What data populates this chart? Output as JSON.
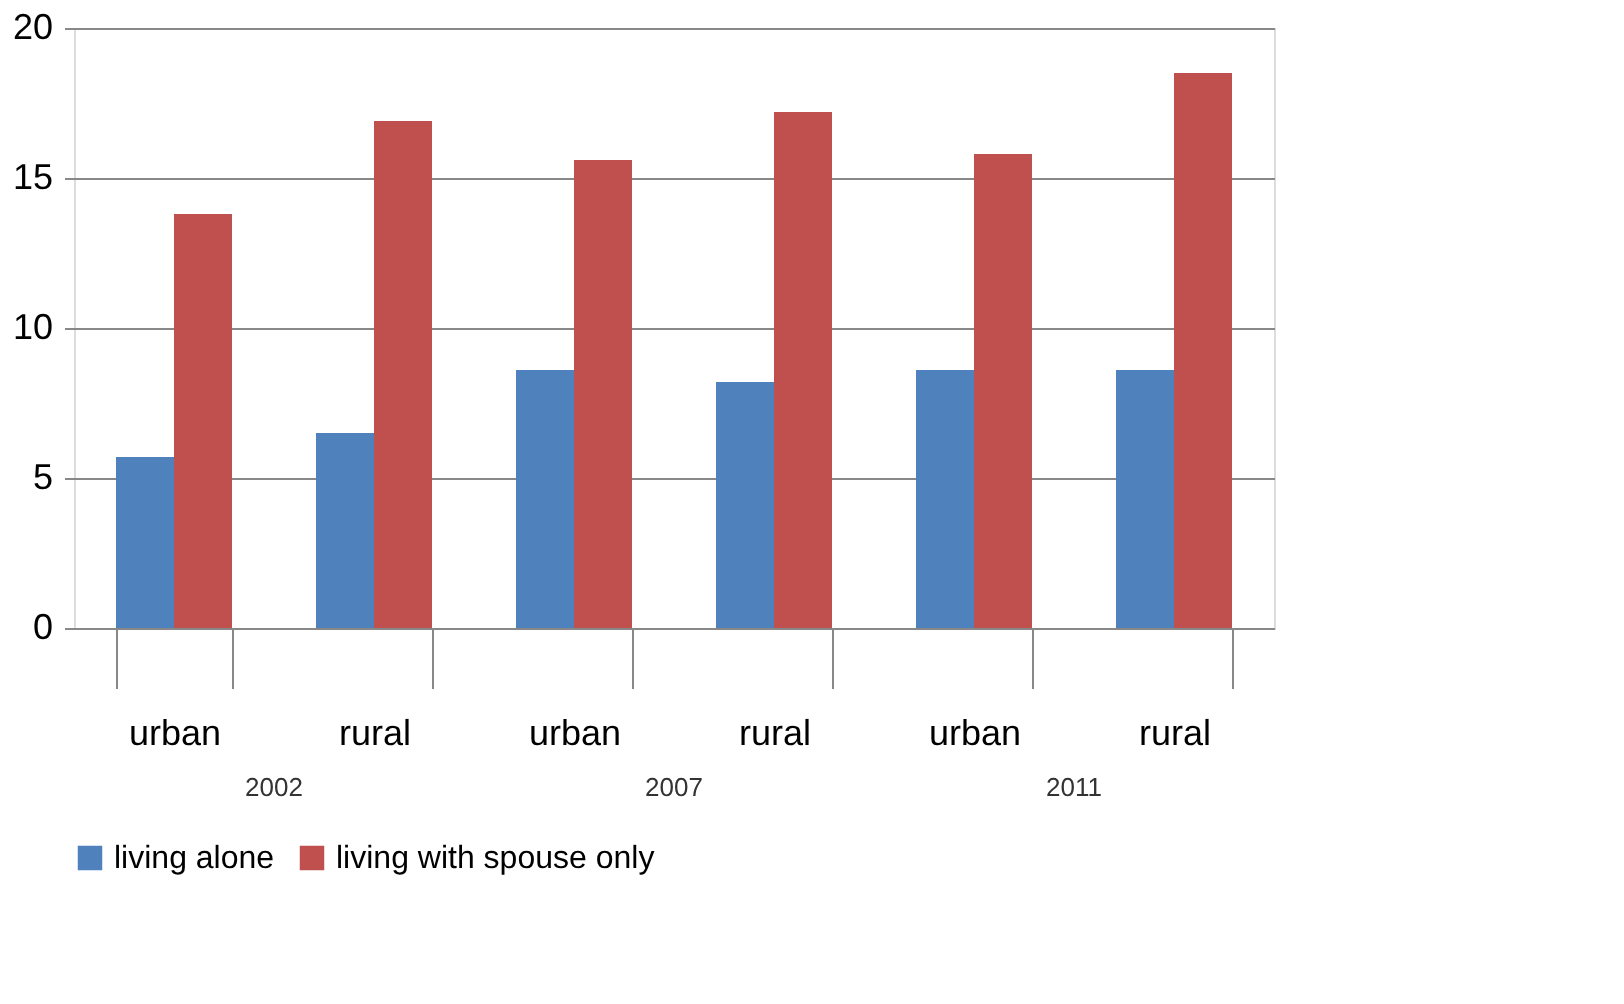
{
  "chart_data": {
    "type": "bar",
    "categories": [
      "urban",
      "rural",
      "urban",
      "rural",
      "urban",
      "rural"
    ],
    "series": [
      {
        "name": "living alone",
        "color": "#4f81bd",
        "values": [
          5.7,
          6.5,
          8.6,
          8.2,
          8.6,
          8.6
        ]
      },
      {
        "name": "living with spouse only",
        "color": "#c0504d",
        "values": [
          13.8,
          16.9,
          15.6,
          17.2,
          15.8,
          18.5
        ]
      }
    ],
    "annotations": [
      "2002",
      "2007",
      "2011"
    ],
    "ylim": [
      0,
      20
    ],
    "yticks": [
      0,
      5,
      10,
      15,
      20
    ],
    "grid": "y",
    "legend": "bottom"
  }
}
